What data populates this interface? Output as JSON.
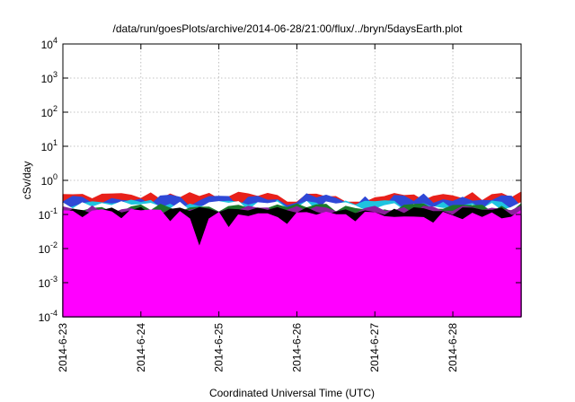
{
  "chart_data": {
    "type": "area",
    "title": "/data/run/goesPlots/archive/2014-06-28/21:00/flux/../bryn/5daysEarth.plot",
    "xlabel": "Coordinated Universal Time (UTC)",
    "ylabel": "cSv/day",
    "yscale": "log",
    "ylim": [
      0.0001,
      10000
    ],
    "xlim": [
      "2014-06-23",
      "2014-06-28T21:00"
    ],
    "grid": true,
    "x_ticks": [
      "2014-6-23",
      "2014-6-24",
      "2014-6-25",
      "2014-6-26",
      "2014-6-27",
      "2014-6-28"
    ],
    "y_ticks": [
      {
        "base": "10",
        "exp": "-4",
        "value": 0.0001
      },
      {
        "base": "10",
        "exp": "-3",
        "value": 0.001
      },
      {
        "base": "10",
        "exp": "-2",
        "value": 0.01
      },
      {
        "base": "10",
        "exp": "-1",
        "value": 0.1
      },
      {
        "base": "10",
        "exp": "0",
        "value": 1
      },
      {
        "base": "10",
        "exp": "1",
        "value": 10
      },
      {
        "base": "10",
        "exp": "2",
        "value": 100
      },
      {
        "base": "10",
        "exp": "3",
        "value": 1000
      },
      {
        "base": "10",
        "exp": "4",
        "value": 10000
      }
    ],
    "series": [
      {
        "color": "#e8201a",
        "base": 0.35,
        "amp": 0.1,
        "dips": []
      },
      {
        "color": "#2f48d6",
        "base": 0.3,
        "amp": 0.11,
        "dips": [
          [
            "2014-06-25T05:00",
            0.16
          ],
          [
            "2014-06-25T20:00",
            0.18
          ]
        ]
      },
      {
        "color": "#1ec4e0",
        "base": 0.21,
        "amp": 0.06,
        "dips": []
      },
      {
        "color": "#ffffff",
        "base": 0.19,
        "amp": 0.05,
        "dips": []
      },
      {
        "color": "#1a7a2a",
        "base": 0.165,
        "amp": 0.04,
        "dips": []
      },
      {
        "color": "#8a1f9a",
        "base": 0.145,
        "amp": 0.035,
        "dips": []
      },
      {
        "color": "#000000",
        "base": 0.13,
        "amp": 0.03,
        "dips": []
      },
      {
        "color": "#ff00ff",
        "base": 0.11,
        "amp": 0.03,
        "dips": [
          [
            "2014-06-23T06:00",
            0.08
          ],
          [
            "2014-06-24T08:00",
            0.06
          ],
          [
            "2014-06-24T19:00",
            0.011
          ],
          [
            "2014-06-25T02:00",
            0.04
          ],
          [
            "2014-06-25T21:00",
            0.05
          ],
          [
            "2014-06-26T18:00",
            0.06
          ],
          [
            "2014-06-27T19:00",
            0.055
          ],
          [
            "2014-06-28T02:00",
            0.07
          ]
        ]
      }
    ]
  }
}
